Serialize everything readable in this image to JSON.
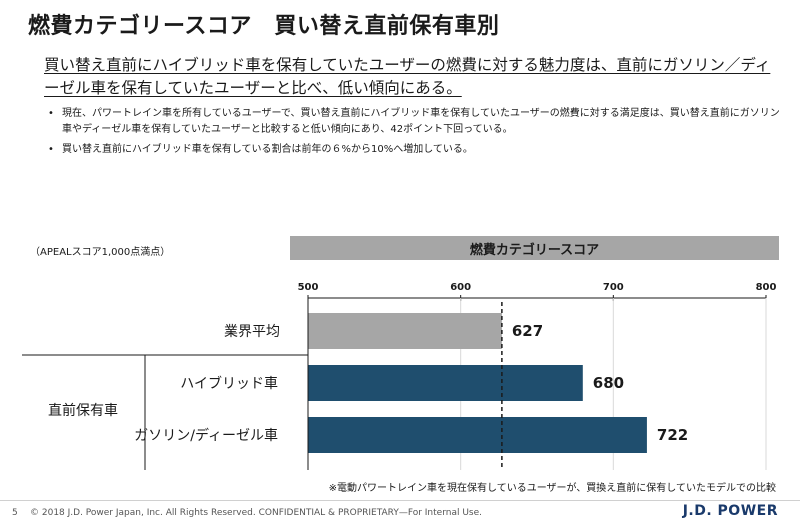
{
  "header": {
    "title": "燃費カテゴリースコア　買い替え直前保有車別",
    "subtitle": "買い替え直前にハイブリッド車を保有していたユーザーの燃費に対する魅力度は、直前にガソリン／ディーゼル車を保有していたユーザーと比べ、低い傾向にある。"
  },
  "bullets": [
    "現在、パワートレイン車を所有しているユーザーで、買い替え直前にハイブリッド車を保有していたユーザーの燃費に対する満足度は、買い替え直前にガソリン車やディーゼル車を保有していたユーザーと比較すると低い傾向にあり、42ポイント下回っている。",
    "買い替え直前にハイブリッド車を保有している割合は前年の６%から10%へ増加している。"
  ],
  "chart_data": {
    "type": "bar",
    "orientation": "horizontal",
    "title": "燃費カテゴリースコア",
    "score_note": "（APEALスコア1,000点満点）",
    "xlim": [
      500,
      800
    ],
    "xticks": [
      500,
      600,
      700,
      800
    ],
    "reference_line": 627,
    "group_label": "直前保有車",
    "categories": [
      "業界平均",
      "ハイブリッド車",
      "ガソリン/ディーゼル車"
    ],
    "values": [
      627,
      680,
      722
    ],
    "colors": [
      "#a6a6a6",
      "#1f4e6e",
      "#1f4e6e"
    ]
  },
  "footnote": "※電動パワートレイン車を現在保有しているユーザーが、買換え直前に保有していたモデルでの比較",
  "footer": {
    "page": "5",
    "copyright": "© 2018 J.D. Power Japan, Inc. All Rights Reserved. CONFIDENTIAL & PROPRIETARY—For Internal Use.",
    "logo": "J.D. POWER"
  }
}
